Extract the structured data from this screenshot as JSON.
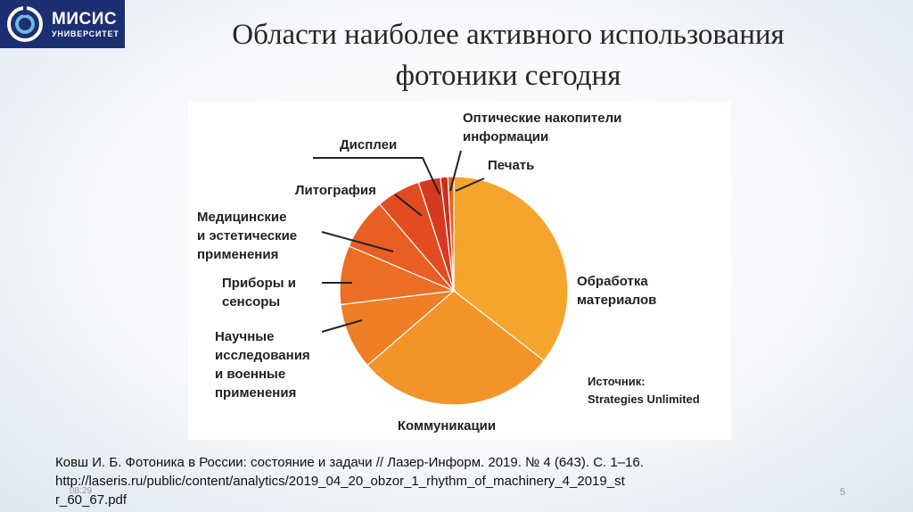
{
  "logo": {
    "name": "МИСИС",
    "subtitle": "УНИВЕРСИТЕТ"
  },
  "slide": {
    "title_line1": "Области наиболее активного использования",
    "title_line2": "фотоники сегодня",
    "reference_line1": "Ковш И. Б. Фотоника в России: состояние и задачи // Лазер-Информ. 2019. № 4 (643). С. 1–16.",
    "reference_line2": "http://laseris.ru/public/content/analytics/2019_04_20_obzor_1_rhythm_of_machinery_4_2019_st",
    "reference_line3": "r_60_67.pdf",
    "time": "08:29",
    "page_number": "5"
  },
  "chart_data": {
    "type": "pie",
    "title": "",
    "start_angle": 0,
    "slices": [
      {
        "label": [
          "Обработка",
          "материалов"
        ],
        "value": 34,
        "color": "#f6a52c"
      },
      {
        "label": [
          "Коммуникации"
        ],
        "value": 27,
        "color": "#f39428"
      },
      {
        "label": [
          "Научные",
          "исследования",
          "и военные",
          "применения"
        ],
        "value": 9,
        "color": "#ef7f26"
      },
      {
        "label": [
          "Приборы и",
          "сенсоры"
        ],
        "value": 8,
        "color": "#ec6e25"
      },
      {
        "label": [
          "Медицинские",
          "и эстетические",
          "применения"
        ],
        "value": 7,
        "color": "#e85e23"
      },
      {
        "label": [
          "Литография"
        ],
        "value": 6,
        "color": "#e34c21"
      },
      {
        "label": [
          "Дисплеи"
        ],
        "value": 3,
        "color": "#d43a20"
      },
      {
        "label": [
          "Оптические накопители",
          "информации"
        ],
        "value": 1,
        "color": "#c9301e"
      },
      {
        "label": [
          "Печать"
        ],
        "value": 0.8,
        "color": "#e2611f"
      }
    ],
    "source": [
      "Источник:",
      "Strategies Unlimited"
    ]
  },
  "icons": {
    "logo": "misis-logo-icon"
  }
}
